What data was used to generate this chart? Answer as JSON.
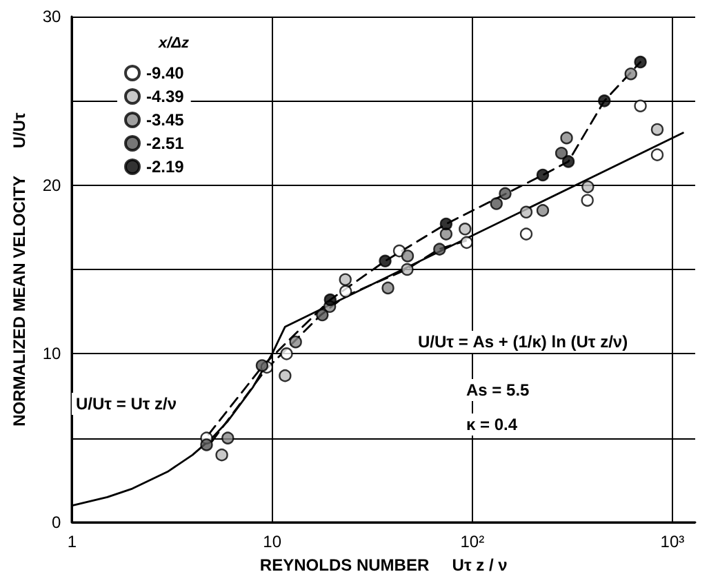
{
  "chart_data": {
    "type": "scatter",
    "xlabel": "REYNOLDS NUMBER     Uτ z / ν",
    "ylabel": "NORMALIZED MEAN VELOCITY      U/Uτ",
    "legend_title": "x/Δz",
    "log": "x",
    "grid": true,
    "legend": "top left",
    "marker": "circle",
    "xlim": [
      1,
      1300
    ],
    "xticks": [
      1,
      10,
      {
        "value": 100,
        "label": "10²"
      },
      {
        "value": 1000,
        "label": "10³"
      }
    ],
    "ylim": [
      0,
      30
    ],
    "yticks": [
      0,
      {
        "value": 5,
        "label": null
      },
      10,
      {
        "value": 15,
        "label": null
      },
      20,
      {
        "value": 25,
        "label": null
      },
      30
    ],
    "annotations": [
      "U/Uτ = Uτ z/ν",
      "U/Uτ = As + (1/κ) ln (Uτ z/ν)",
      "As = 5.5",
      "κ = 0.4"
    ],
    "series": [
      {
        "name": "-9.40",
        "color": "#ffffff",
        "x": [
          4.7,
          9.4,
          11.8,
          23.3,
          43.2,
          93.7,
          186,
          376,
          692,
          840
        ],
        "values": [
          5.0,
          9.2,
          10.0,
          13.7,
          16.1,
          16.6,
          17.1,
          19.1,
          24.7,
          21.8
        ]
      },
      {
        "name": "-4.39",
        "color": "#bbbbbb",
        "x": [
          5.6,
          11.6,
          23.2,
          47.3,
          92,
          186,
          378,
          840
        ],
        "values": [
          4.0,
          8.7,
          14.4,
          15.0,
          17.4,
          18.4,
          19.9,
          23.3
        ]
      },
      {
        "name": "-3.45",
        "color": "#888888",
        "x": [
          6.0,
          13.1,
          19.4,
          37.9,
          47.5,
          74,
          225,
          296,
          620
        ],
        "values": [
          5.0,
          10.7,
          12.8,
          13.9,
          15.8,
          17.1,
          18.5,
          22.8,
          26.6
        ]
      },
      {
        "name": "-2.51",
        "color": "#555555",
        "x": [
          4.7,
          8.9,
          17.8,
          68.6,
          132,
          146,
          279
        ],
        "values": [
          4.6,
          9.3,
          12.3,
          16.2,
          18.9,
          19.5,
          21.9
        ]
      },
      {
        "name": "-2.19",
        "color": "#000000",
        "x": [
          19.5,
          36.7,
          74,
          225,
          302,
          457,
          692
        ],
        "values": [
          13.2,
          15.5,
          17.7,
          20.6,
          21.4,
          25.0,
          27.3
        ]
      },
      {
        "type": "line",
        "color": "#000000",
        "line_style": "solid",
        "marker": "none",
        "x": [
          1,
          1.5,
          2,
          3,
          4,
          5,
          6,
          8,
          10,
          11.6,
          1130
        ],
        "values": [
          1,
          1.5,
          2,
          3,
          4,
          5,
          6,
          8,
          10,
          11.6,
          23.1
        ]
      },
      {
        "type": "line",
        "color": "#000000",
        "line_style": "dashed",
        "marker": "none",
        "x": [
          4.8,
          9,
          19.5,
          36.7,
          74,
          225,
          302,
          457,
          692
        ],
        "values": [
          5.2,
          9.3,
          13.2,
          15.5,
          17.7,
          20.6,
          21.4,
          25.0,
          27.3
        ]
      },
      {
        "type": "line",
        "color": "#000000",
        "line_style": "dashed",
        "marker": "none",
        "x": [
          5,
          9.2,
          17.5,
          23,
          47,
          68,
          93
        ],
        "values": [
          4.8,
          9.0,
          12.3,
          13.4,
          15.0,
          16.2,
          16.7
        ]
      }
    ]
  }
}
